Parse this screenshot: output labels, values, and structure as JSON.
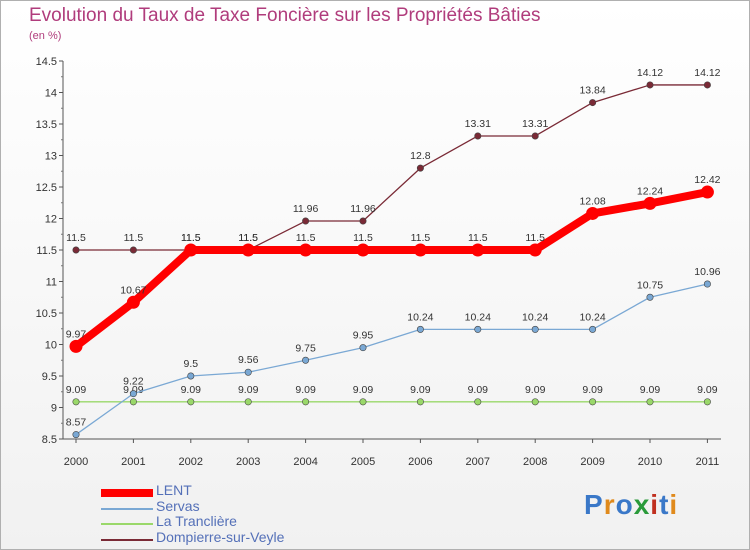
{
  "title": "Evolution du Taux de Taxe Foncière sur les Propriétés Bâties",
  "subtitle": "(en %)",
  "logo_text": "Proxiti",
  "chart_data": {
    "type": "line",
    "x": [
      "2000",
      "2001",
      "2002",
      "2003",
      "2004",
      "2005",
      "2006",
      "2007",
      "2008",
      "2009",
      "2010",
      "2011"
    ],
    "yticks": [
      "8.5",
      "9",
      "9.5",
      "10",
      "10.5",
      "11",
      "11.5",
      "12",
      "12.5",
      "13",
      "13.5",
      "14",
      "14.5"
    ],
    "ylim": [
      8.5,
      14.5
    ],
    "series": [
      {
        "name": "Dompierre-sur-Veyle",
        "color": "#7a2a36",
        "values": [
          11.5,
          11.5,
          11.5,
          11.5,
          11.96,
          11.96,
          12.8,
          13.31,
          13.31,
          13.84,
          14.12,
          14.12
        ],
        "labels": [
          "11.5",
          "11.5",
          "11.5",
          "11.5",
          "11.96",
          "11.96",
          "12.8",
          "13.31",
          "13.31",
          "13.84",
          "14.12",
          "14.12"
        ]
      },
      {
        "name": "La Tranclière",
        "color": "#9ad86a",
        "values": [
          9.09,
          9.09,
          9.09,
          9.09,
          9.09,
          9.09,
          9.09,
          9.09,
          9.09,
          9.09,
          9.09,
          9.09
        ],
        "labels": [
          "9.09",
          "9.09",
          "9.09",
          "9.09",
          "9.09",
          "9.09",
          "9.09",
          "9.09",
          "9.09",
          "9.09",
          "9.09",
          "9.09"
        ]
      },
      {
        "name": "Servas",
        "color": "#7aa8d4",
        "values": [
          8.57,
          9.22,
          9.5,
          9.56,
          9.75,
          9.95,
          10.24,
          10.24,
          10.24,
          10.24,
          10.75,
          10.96
        ],
        "labels": [
          "8.57",
          "9.22",
          "9.5",
          "9.56",
          "9.75",
          "9.95",
          "10.24",
          "10.24",
          "10.24",
          "10.24",
          "10.75",
          "10.96"
        ]
      },
      {
        "name": "LENT",
        "color": "#ff0000",
        "values": [
          9.97,
          10.67,
          11.5,
          11.5,
          11.5,
          11.5,
          11.5,
          11.5,
          11.5,
          12.08,
          12.24,
          12.42
        ],
        "labels": [
          "9.97",
          "10.67",
          "11.5",
          "11.5",
          "11.5",
          "11.5",
          "11.5",
          "11.5",
          "11.5",
          "12.08",
          "12.24",
          "12.42"
        ]
      }
    ],
    "legend_order": [
      "LENT",
      "Servas",
      "La Tranclière",
      "Dompierre-sur-Veyle"
    ]
  }
}
